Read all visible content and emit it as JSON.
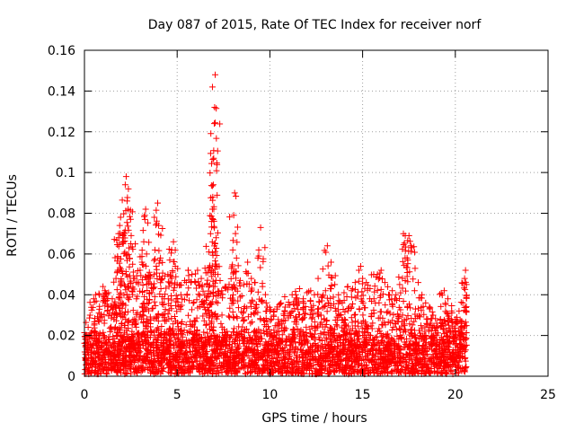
{
  "chart_data": {
    "type": "scatter",
    "title": "Day 087 of 2015, Rate Of TEC Index for receiver norf",
    "xlabel": "GPS time / hours",
    "ylabel": "ROTI / TECUs",
    "xlim": [
      0,
      25
    ],
    "ylim": [
      0,
      0.16
    ],
    "xticks": [
      0,
      5,
      10,
      15,
      20,
      25
    ],
    "yticks": [
      0,
      0.02,
      0.04,
      0.06,
      0.08,
      0.1,
      0.12,
      0.14,
      0.16
    ],
    "xtick_labels": [
      "0",
      "5",
      "10",
      "15",
      "20",
      "25"
    ],
    "ytick_labels": [
      "0",
      "0.02",
      "0.04",
      "0.06",
      "0.08",
      "0.1",
      "0.12",
      "0.14",
      "0.16"
    ],
    "grid": true,
    "marker": "+",
    "color": "#ff0000",
    "x_range_of_data": [
      0,
      20.6
    ],
    "points": [
      [
        0.2,
        0.024
      ],
      [
        0.3,
        0.03
      ],
      [
        0.5,
        0.038
      ],
      [
        0.6,
        0.04
      ],
      [
        0.8,
        0.04
      ],
      [
        1.0,
        0.044
      ],
      [
        1.1,
        0.042
      ],
      [
        1.3,
        0.041
      ],
      [
        1.5,
        0.038
      ],
      [
        1.6,
        0.035
      ],
      [
        1.7,
        0.048
      ],
      [
        1.8,
        0.052
      ],
      [
        1.85,
        0.068
      ],
      [
        1.9,
        0.074
      ],
      [
        1.95,
        0.078
      ],
      [
        2.05,
        0.066
      ],
      [
        2.1,
        0.069
      ],
      [
        2.15,
        0.07
      ],
      [
        2.2,
        0.094
      ],
      [
        2.25,
        0.098
      ],
      [
        2.3,
        0.086
      ],
      [
        2.35,
        0.082
      ],
      [
        2.4,
        0.063
      ],
      [
        2.5,
        0.065
      ],
      [
        2.6,
        0.055
      ],
      [
        2.7,
        0.048
      ],
      [
        2.8,
        0.046
      ],
      [
        3.0,
        0.052
      ],
      [
        3.1,
        0.056
      ],
      [
        3.2,
        0.066
      ],
      [
        3.25,
        0.079
      ],
      [
        3.3,
        0.082
      ],
      [
        3.35,
        0.06
      ],
      [
        3.5,
        0.051
      ],
      [
        3.6,
        0.045
      ],
      [
        3.7,
        0.043
      ],
      [
        3.8,
        0.062
      ],
      [
        3.9,
        0.075
      ],
      [
        3.95,
        0.085
      ],
      [
        4.0,
        0.074
      ],
      [
        4.1,
        0.058
      ],
      [
        4.2,
        0.048
      ],
      [
        4.3,
        0.038
      ],
      [
        4.5,
        0.05
      ],
      [
        4.6,
        0.057
      ],
      [
        4.7,
        0.062
      ],
      [
        4.8,
        0.066
      ],
      [
        4.9,
        0.054
      ],
      [
        5.0,
        0.045
      ],
      [
        5.2,
        0.04
      ],
      [
        5.4,
        0.047
      ],
      [
        5.6,
        0.052
      ],
      [
        5.8,
        0.05
      ],
      [
        6.0,
        0.046
      ],
      [
        6.1,
        0.052
      ],
      [
        6.3,
        0.048
      ],
      [
        6.5,
        0.053
      ],
      [
        6.6,
        0.045
      ],
      [
        6.7,
        0.053
      ],
      [
        6.8,
        0.07
      ],
      [
        6.85,
        0.076
      ],
      [
        6.9,
        0.082
      ],
      [
        6.92,
        0.088
      ],
      [
        6.95,
        0.094
      ],
      [
        6.97,
        0.107
      ],
      [
        7.0,
        0.124
      ],
      [
        7.02,
        0.132
      ],
      [
        7.05,
        0.148
      ],
      [
        7.1,
        0.068
      ],
      [
        7.2,
        0.05
      ],
      [
        7.4,
        0.042
      ],
      [
        7.6,
        0.044
      ],
      [
        7.8,
        0.045
      ],
      [
        8.0,
        0.062
      ],
      [
        8.05,
        0.079
      ],
      [
        8.1,
        0.09
      ],
      [
        8.2,
        0.058
      ],
      [
        8.4,
        0.047
      ],
      [
        8.6,
        0.045
      ],
      [
        8.8,
        0.056
      ],
      [
        9.0,
        0.048
      ],
      [
        9.2,
        0.046
      ],
      [
        9.4,
        0.062
      ],
      [
        9.5,
        0.073
      ],
      [
        9.6,
        0.044
      ],
      [
        9.8,
        0.036
      ],
      [
        10.0,
        0.032
      ],
      [
        10.2,
        0.03
      ],
      [
        10.4,
        0.034
      ],
      [
        10.6,
        0.036
      ],
      [
        10.8,
        0.039
      ],
      [
        11.0,
        0.035
      ],
      [
        11.2,
        0.04
      ],
      [
        11.4,
        0.04
      ],
      [
        11.6,
        0.043
      ],
      [
        11.8,
        0.038
      ],
      [
        12.0,
        0.041
      ],
      [
        12.2,
        0.042
      ],
      [
        12.4,
        0.04
      ],
      [
        12.6,
        0.048
      ],
      [
        12.8,
        0.037
      ],
      [
        13.0,
        0.042
      ],
      [
        13.1,
        0.064
      ],
      [
        13.3,
        0.056
      ],
      [
        13.5,
        0.045
      ],
      [
        13.7,
        0.04
      ],
      [
        13.9,
        0.036
      ],
      [
        14.0,
        0.041
      ],
      [
        14.2,
        0.044
      ],
      [
        14.4,
        0.042
      ],
      [
        14.6,
        0.046
      ],
      [
        14.8,
        0.052
      ],
      [
        14.9,
        0.054
      ],
      [
        15.0,
        0.048
      ],
      [
        15.2,
        0.046
      ],
      [
        15.4,
        0.043
      ],
      [
        15.6,
        0.05
      ],
      [
        15.8,
        0.05
      ],
      [
        16.0,
        0.052
      ],
      [
        16.2,
        0.046
      ],
      [
        16.4,
        0.04
      ],
      [
        16.6,
        0.042
      ],
      [
        16.8,
        0.04
      ],
      [
        17.0,
        0.045
      ],
      [
        17.2,
        0.07
      ],
      [
        17.3,
        0.069
      ],
      [
        17.4,
        0.058
      ],
      [
        17.5,
        0.069
      ],
      [
        17.6,
        0.064
      ],
      [
        17.8,
        0.042
      ],
      [
        18.0,
        0.046
      ],
      [
        18.2,
        0.04
      ],
      [
        18.4,
        0.036
      ],
      [
        18.6,
        0.034
      ],
      [
        18.8,
        0.03
      ],
      [
        19.0,
        0.026
      ],
      [
        19.2,
        0.028
      ],
      [
        19.4,
        0.042
      ],
      [
        19.6,
        0.038
      ],
      [
        19.8,
        0.032
      ],
      [
        20.0,
        0.028
      ],
      [
        20.2,
        0.032
      ],
      [
        20.4,
        0.036
      ],
      [
        20.5,
        0.048
      ],
      [
        20.55,
        0.052
      ],
      [
        20.6,
        0.045
      ]
    ],
    "baseline_band": {
      "ymin": 0.001,
      "ymax": 0.025
    }
  }
}
